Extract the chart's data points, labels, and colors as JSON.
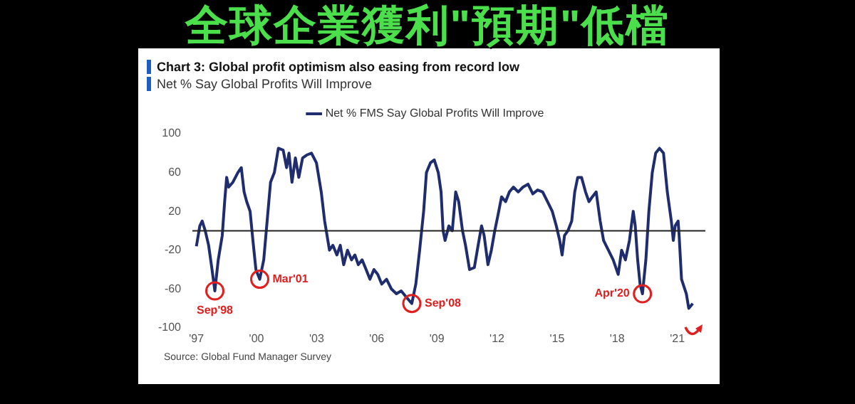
{
  "chart_data": {
    "type": "line",
    "title": "全球企業獲利\"預期\"低檔",
    "subtitle": "Chart 3: Global profit optimism also easing from record low",
    "ylabel": "Net % Say Global Profits Will Improve",
    "x": [
      1997.0,
      1997.17,
      1997.29,
      1997.44,
      1997.61,
      1997.78,
      1997.92,
      1998.09,
      1998.29,
      1998.41,
      1998.51,
      1998.61,
      1998.82,
      1999.07,
      1999.24,
      1999.38,
      1999.51,
      1999.68,
      1999.82,
      1999.97,
      2000.16,
      2000.36,
      2000.53,
      2000.7,
      2000.89,
      2001.09,
      2001.33,
      2001.5,
      2001.62,
      2001.77,
      2001.94,
      2002.11,
      2002.3,
      2002.5,
      2002.74,
      2002.99,
      2003.23,
      2003.4,
      2003.52,
      2003.64,
      2003.81,
      2004.01,
      2004.18,
      2004.35,
      2004.54,
      2004.74,
      2004.91,
      2005.08,
      2005.27,
      2005.47,
      2005.66,
      2005.86,
      2006.05,
      2006.25,
      2006.49,
      2006.73,
      2006.98,
      2007.22,
      2007.46,
      2007.75,
      2007.95,
      2008.14,
      2008.34,
      2008.48,
      2008.68,
      2008.87,
      2009.07,
      2009.21,
      2009.31,
      2009.41,
      2009.6,
      2009.77,
      2009.94,
      2010.09,
      2010.28,
      2010.43,
      2010.63,
      2010.87,
      2011.06,
      2011.23,
      2011.36,
      2011.55,
      2011.72,
      2011.89,
      2012.04,
      2012.23,
      2012.43,
      2012.62,
      2012.82,
      2013.06,
      2013.3,
      2013.55,
      2013.79,
      2014.03,
      2014.28,
      2014.52,
      2014.76,
      2014.96,
      2015.13,
      2015.25,
      2015.37,
      2015.54,
      2015.73,
      2015.88,
      2016.03,
      2016.22,
      2016.42,
      2016.59,
      2016.76,
      2016.95,
      2017.15,
      2017.32,
      2017.56,
      2017.8,
      2018.05,
      2018.22,
      2018.41,
      2018.61,
      2018.8,
      2018.9,
      2019.02,
      2019.14,
      2019.26,
      2019.43,
      2019.58,
      2019.75,
      2019.92,
      2020.11,
      2020.31,
      2020.5,
      2020.7,
      2020.8,
      2020.89,
      2021.04,
      2021.09,
      2021.21,
      2021.45,
      2021.57,
      2021.77
    ],
    "series": [
      {
        "name": "Net % FMS Say Global Profits Will Improve",
        "color": "#1f2d6e",
        "values": [
          -16,
          5,
          10,
          0,
          -15,
          -40,
          -62,
          -30,
          -5,
          30,
          55,
          45,
          50,
          60,
          65,
          40,
          30,
          20,
          -10,
          -40,
          -50,
          -30,
          10,
          50,
          60,
          85,
          83,
          65,
          80,
          50,
          75,
          55,
          75,
          78,
          80,
          70,
          40,
          10,
          -5,
          -20,
          -15,
          -25,
          -15,
          -35,
          -20,
          -30,
          -25,
          -35,
          -30,
          -40,
          -50,
          -40,
          -45,
          -55,
          -50,
          -60,
          -65,
          -62,
          -68,
          -75,
          -55,
          -20,
          20,
          60,
          70,
          73,
          60,
          40,
          0,
          -10,
          5,
          0,
          40,
          30,
          0,
          -15,
          -40,
          -38,
          -15,
          5,
          -5,
          -35,
          -20,
          0,
          15,
          35,
          30,
          40,
          45,
          40,
          45,
          48,
          38,
          42,
          40,
          30,
          20,
          5,
          -10,
          -25,
          -5,
          0,
          10,
          40,
          55,
          55,
          40,
          30,
          35,
          40,
          10,
          -10,
          -20,
          -30,
          -45,
          -20,
          -30,
          -10,
          20,
          5,
          -30,
          -55,
          -65,
          -30,
          20,
          60,
          80,
          85,
          80,
          40,
          10,
          -10,
          5,
          10,
          -5,
          -50,
          -65,
          -80,
          -75
        ]
      }
    ],
    "xlim": [
      1996.8,
      2022.4
    ],
    "xticks": [
      {
        "value": 1997,
        "label": "'97"
      },
      {
        "value": 2000,
        "label": "'00"
      },
      {
        "value": 2003,
        "label": "'03"
      },
      {
        "value": 2006,
        "label": "'06"
      },
      {
        "value": 2009,
        "label": "'09"
      },
      {
        "value": 2012,
        "label": "'12"
      },
      {
        "value": 2015,
        "label": "'15"
      },
      {
        "value": 2018,
        "label": "'18"
      },
      {
        "value": 2021,
        "label": "'21"
      }
    ],
    "ylim": [
      -100,
      100
    ],
    "yticks": [
      -100,
      -60,
      -20,
      20,
      60,
      100
    ],
    "ref_lines": [
      {
        "axis": "y",
        "value": 0,
        "color": "#222222"
      }
    ],
    "grid": false,
    "legend": "top",
    "marker": "none",
    "line_style": "solid",
    "annotations": [
      {
        "text": "Sep'98",
        "x": 1997.92,
        "y": -62
      },
      {
        "text": "Mar'01",
        "x": 2000.16,
        "y": -50
      },
      {
        "text": "Sep'08",
        "x": 2007.75,
        "y": -75
      },
      {
        "text": "Apr'20",
        "x": 2019.26,
        "y": -65
      },
      "Source: Global Fund Manager Survey"
    ]
  }
}
